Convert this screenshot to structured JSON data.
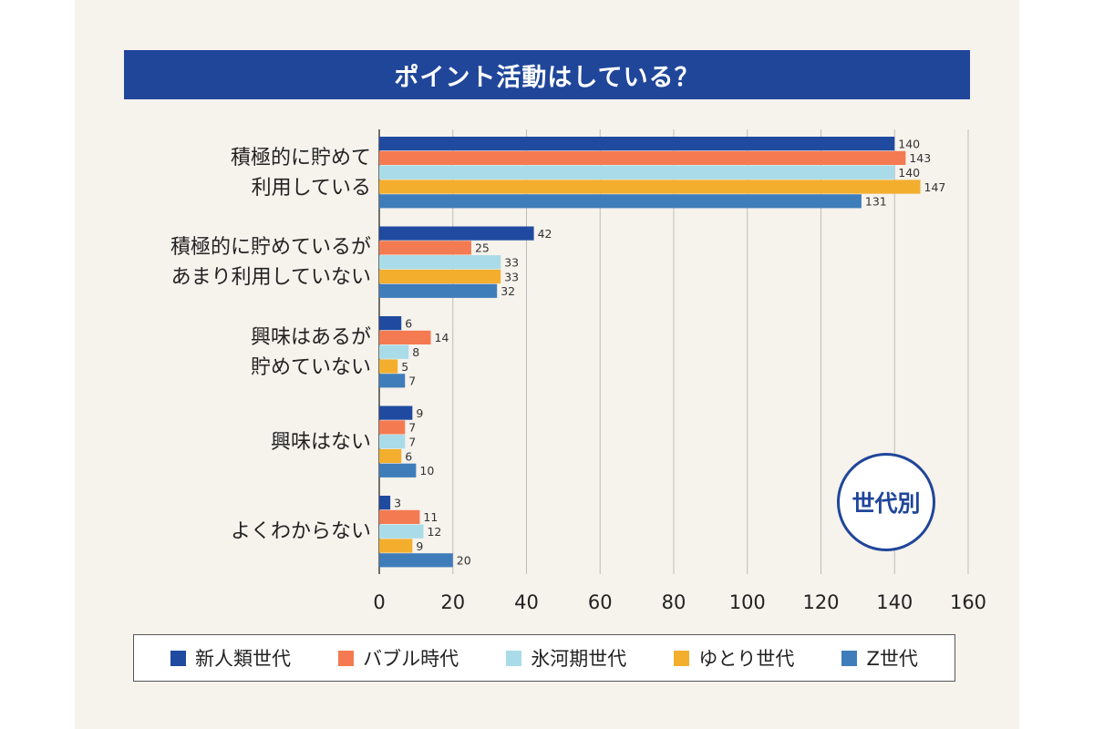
{
  "chart_data": {
    "type": "bar",
    "orientation": "horizontal",
    "title": "ポイント活動はしている？",
    "badge": "世代別",
    "categories": [
      "積極的に貯めて\n利用している",
      "積極的に貯めているが\nあまり利用していない",
      "興味はあるが\n貯めていない",
      "興味はない",
      "よくわからない"
    ],
    "series": [
      {
        "name": "新人類世代",
        "color": "#1f4aa0",
        "values": [
          140,
          42,
          6,
          9,
          3
        ]
      },
      {
        "name": "バブル時代",
        "color": "#f47a52",
        "values": [
          143,
          25,
          14,
          7,
          11
        ]
      },
      {
        "name": "氷河期世代",
        "color": "#a9dce8",
        "values": [
          140,
          33,
          8,
          7,
          12
        ]
      },
      {
        "name": "ゆとり世代",
        "color": "#f3ae2e",
        "values": [
          147,
          33,
          5,
          6,
          9
        ]
      },
      {
        "name": "Z世代",
        "color": "#3f7dba",
        "values": [
          131,
          32,
          7,
          10,
          20
        ]
      }
    ],
    "xlim": [
      0,
      160
    ],
    "xticks": [
      0,
      20,
      40,
      60,
      80,
      100,
      120,
      140,
      160
    ],
    "grid": true,
    "legend": "bottom"
  }
}
